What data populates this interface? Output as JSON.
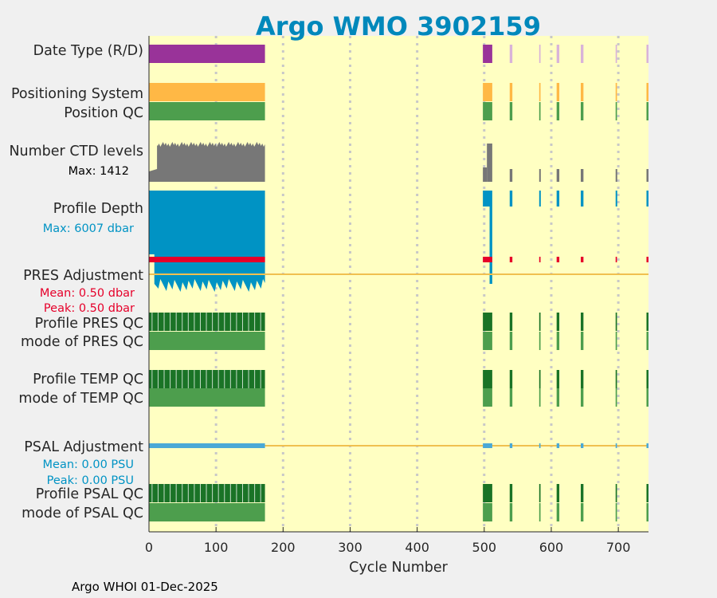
{
  "colors": {
    "background": "#f0f0f0",
    "plot_bg": "#ffffc2",
    "title": "#0088bb",
    "date_type": "#993399",
    "date_type_light": "#d9b3d9",
    "positioning": "#ffb845",
    "qc_good": "#4d9e4d",
    "qc_dark": "#1a7326",
    "ctd": "#777777",
    "profile_depth": "#0093c4",
    "pres_adj": "#e6002a",
    "psal_adj": "#4aa9d6",
    "adj_line": "#f0c050",
    "grid": "#c8c8c8"
  },
  "chart_data": {
    "type": "bar",
    "title": "Argo WMO 3902159",
    "xlabel": "Cycle Number",
    "xlim": [
      0,
      745
    ],
    "xticks": [
      "0",
      "100",
      "200",
      "300",
      "400",
      "500",
      "600",
      "700"
    ],
    "rows": [
      {
        "label": "Date Type (R/D)"
      },
      {
        "label": "Positioning System"
      },
      {
        "label": "Position QC"
      },
      {
        "label": "Number CTD levels"
      },
      {
        "label": "Profile Depth"
      },
      {
        "label": "PRES Adjustment"
      },
      {
        "label": "Profile PRES QC"
      },
      {
        "label": "mode of PRES QC"
      },
      {
        "label": "Profile TEMP QC"
      },
      {
        "label": "mode of TEMP QC"
      },
      {
        "label": "PSAL Adjustment"
      },
      {
        "label": "Profile PSAL QC"
      },
      {
        "label": "mode of PSAL QC"
      }
    ],
    "annotations": {
      "ctd_max": "Max: 1412",
      "depth_max": "Max: 6007 dbar",
      "pres_mean": "Mean: 0.50 dbar",
      "pres_peak": "Peak: 0.50 dbar",
      "psal_mean": "Mean: 0.00 PSU",
      "psal_peak": "Peak: 0.00 PSU"
    },
    "stats": {
      "ctd_levels_max": 1412,
      "profile_depth_max_dbar": 6007,
      "pres_adjustment_mean_dbar": 0.5,
      "pres_adjustment_peak_dbar": 0.5,
      "psal_adjustment_mean_psu": 0.0,
      "psal_adjustment_peak_psu": 0.0
    },
    "cycle_blocks": [
      {
        "start": 0,
        "end": 173
      },
      {
        "start": 498,
        "end": 512
      },
      {
        "start": 538,
        "end": 542
      },
      {
        "start": 582,
        "end": 584
      },
      {
        "start": 608,
        "end": 612
      },
      {
        "start": 644,
        "end": 648
      },
      {
        "start": 696,
        "end": 698
      },
      {
        "start": 742,
        "end": 745
      }
    ],
    "footer": "Argo WHOI 01-Dec-2025"
  }
}
